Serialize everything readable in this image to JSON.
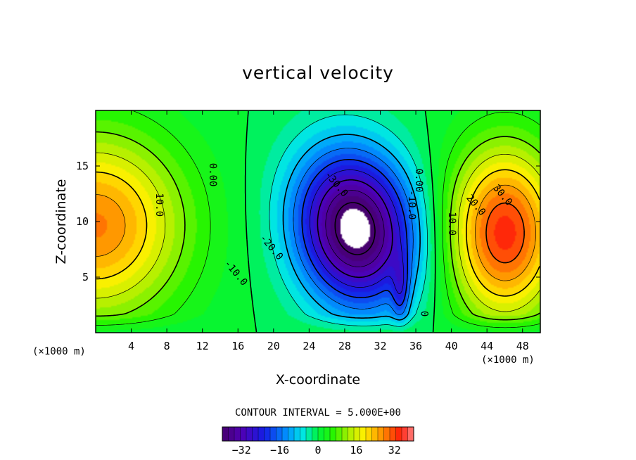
{
  "chart_data": {
    "type": "heatmap",
    "title": "vertical velocity",
    "xlabel": "X-coordinate",
    "ylabel": "Z-coordinate",
    "x_unit_label": "(×1000 m)",
    "xlim": [
      0,
      50
    ],
    "ylim": [
      0,
      20
    ],
    "x_ticks": [
      4,
      8,
      12,
      16,
      20,
      24,
      28,
      32,
      36,
      40,
      44,
      48
    ],
    "y_ticks": [
      5,
      10,
      15
    ],
    "contour_interval_text": "CONTOUR INTERVAL = 5.000E+00",
    "contour_interval": 5,
    "colorbar": {
      "min": -40,
      "max": 40,
      "tick_labels": [
        "-32",
        "-16",
        "0",
        "16",
        "32"
      ],
      "tick_values": [
        -32,
        -16,
        0,
        16,
        32
      ]
    },
    "features": [
      {
        "name": "updraft-left",
        "x": 0,
        "z": 9.5,
        "peak": 28,
        "rx": 7,
        "rz": 7
      },
      {
        "name": "downdraft-center",
        "x": 29.2,
        "z": 9.2,
        "peak": -45,
        "rx": 4.6,
        "rz": 5.6,
        "tilt": -0.35
      },
      {
        "name": "downdraft-tail",
        "x": 34.3,
        "z": 3.5,
        "peak": -14,
        "rx": 0.7,
        "rz": 2.2
      },
      {
        "name": "updraft-right",
        "x": 46,
        "z": 8.6,
        "peak": 34,
        "rx": 4.5,
        "rz": 6.5
      }
    ],
    "contour_labels": [
      {
        "text": "10.0",
        "x": 6.8,
        "z": 11.5
      },
      {
        "text": "0.00",
        "x": 12.8,
        "z": 14.2
      },
      {
        "text": "-10.0",
        "x": 15.5,
        "z": 5.2
      },
      {
        "text": "-20.0",
        "x": 19.5,
        "z": 7.5
      },
      {
        "text": "-30.0",
        "x": 26.8,
        "z": 13.2
      },
      {
        "text": "-10.0",
        "x": 35.2,
        "z": 11.5
      },
      {
        "text": "0.00",
        "x": 36.0,
        "z": 13.7
      },
      {
        "text": "0",
        "x": 36.6,
        "z": 1.7
      },
      {
        "text": "10.0",
        "x": 39.7,
        "z": 9.8
      },
      {
        "text": "20.0",
        "x": 42.5,
        "z": 11.3
      },
      {
        "text": "30.0",
        "x": 45.5,
        "z": 12.2
      }
    ]
  }
}
